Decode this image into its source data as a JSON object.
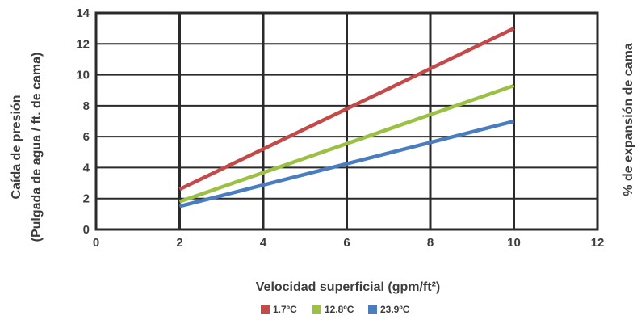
{
  "chart_data": {
    "type": "line",
    "xlabel": "Velocidad superficial (gpm/ft²)",
    "ylabel_line1": "Caída de presión",
    "ylabel_line2": "(Pulgada de agua / ft. de cama)",
    "y2label": "% de expansión de cama",
    "xlim": [
      0,
      12
    ],
    "ylim": [
      0,
      14
    ],
    "x_ticks": [
      "0",
      "2",
      "4",
      "6",
      "8",
      "10",
      "12"
    ],
    "y_ticks": [
      "0",
      "2",
      "4",
      "6",
      "8",
      "10",
      "12",
      "14"
    ],
    "x_tick_values": [
      0,
      2,
      4,
      6,
      8,
      10,
      12
    ],
    "y_tick_values": [
      0,
      2,
      4,
      6,
      8,
      10,
      12,
      14
    ],
    "grid": true,
    "legend_position": "bottom",
    "series": [
      {
        "name": "1.7ºC",
        "color": "#c44a4a",
        "x": [
          2,
          10
        ],
        "y": [
          2.6,
          13.0
        ]
      },
      {
        "name": "12.8ºC",
        "color": "#9cc044",
        "x": [
          2,
          10
        ],
        "y": [
          1.8,
          9.3
        ]
      },
      {
        "name": "23.9ºC",
        "color": "#4a7cc0",
        "x": [
          2,
          10
        ],
        "y": [
          1.5,
          7.0
        ]
      }
    ]
  }
}
